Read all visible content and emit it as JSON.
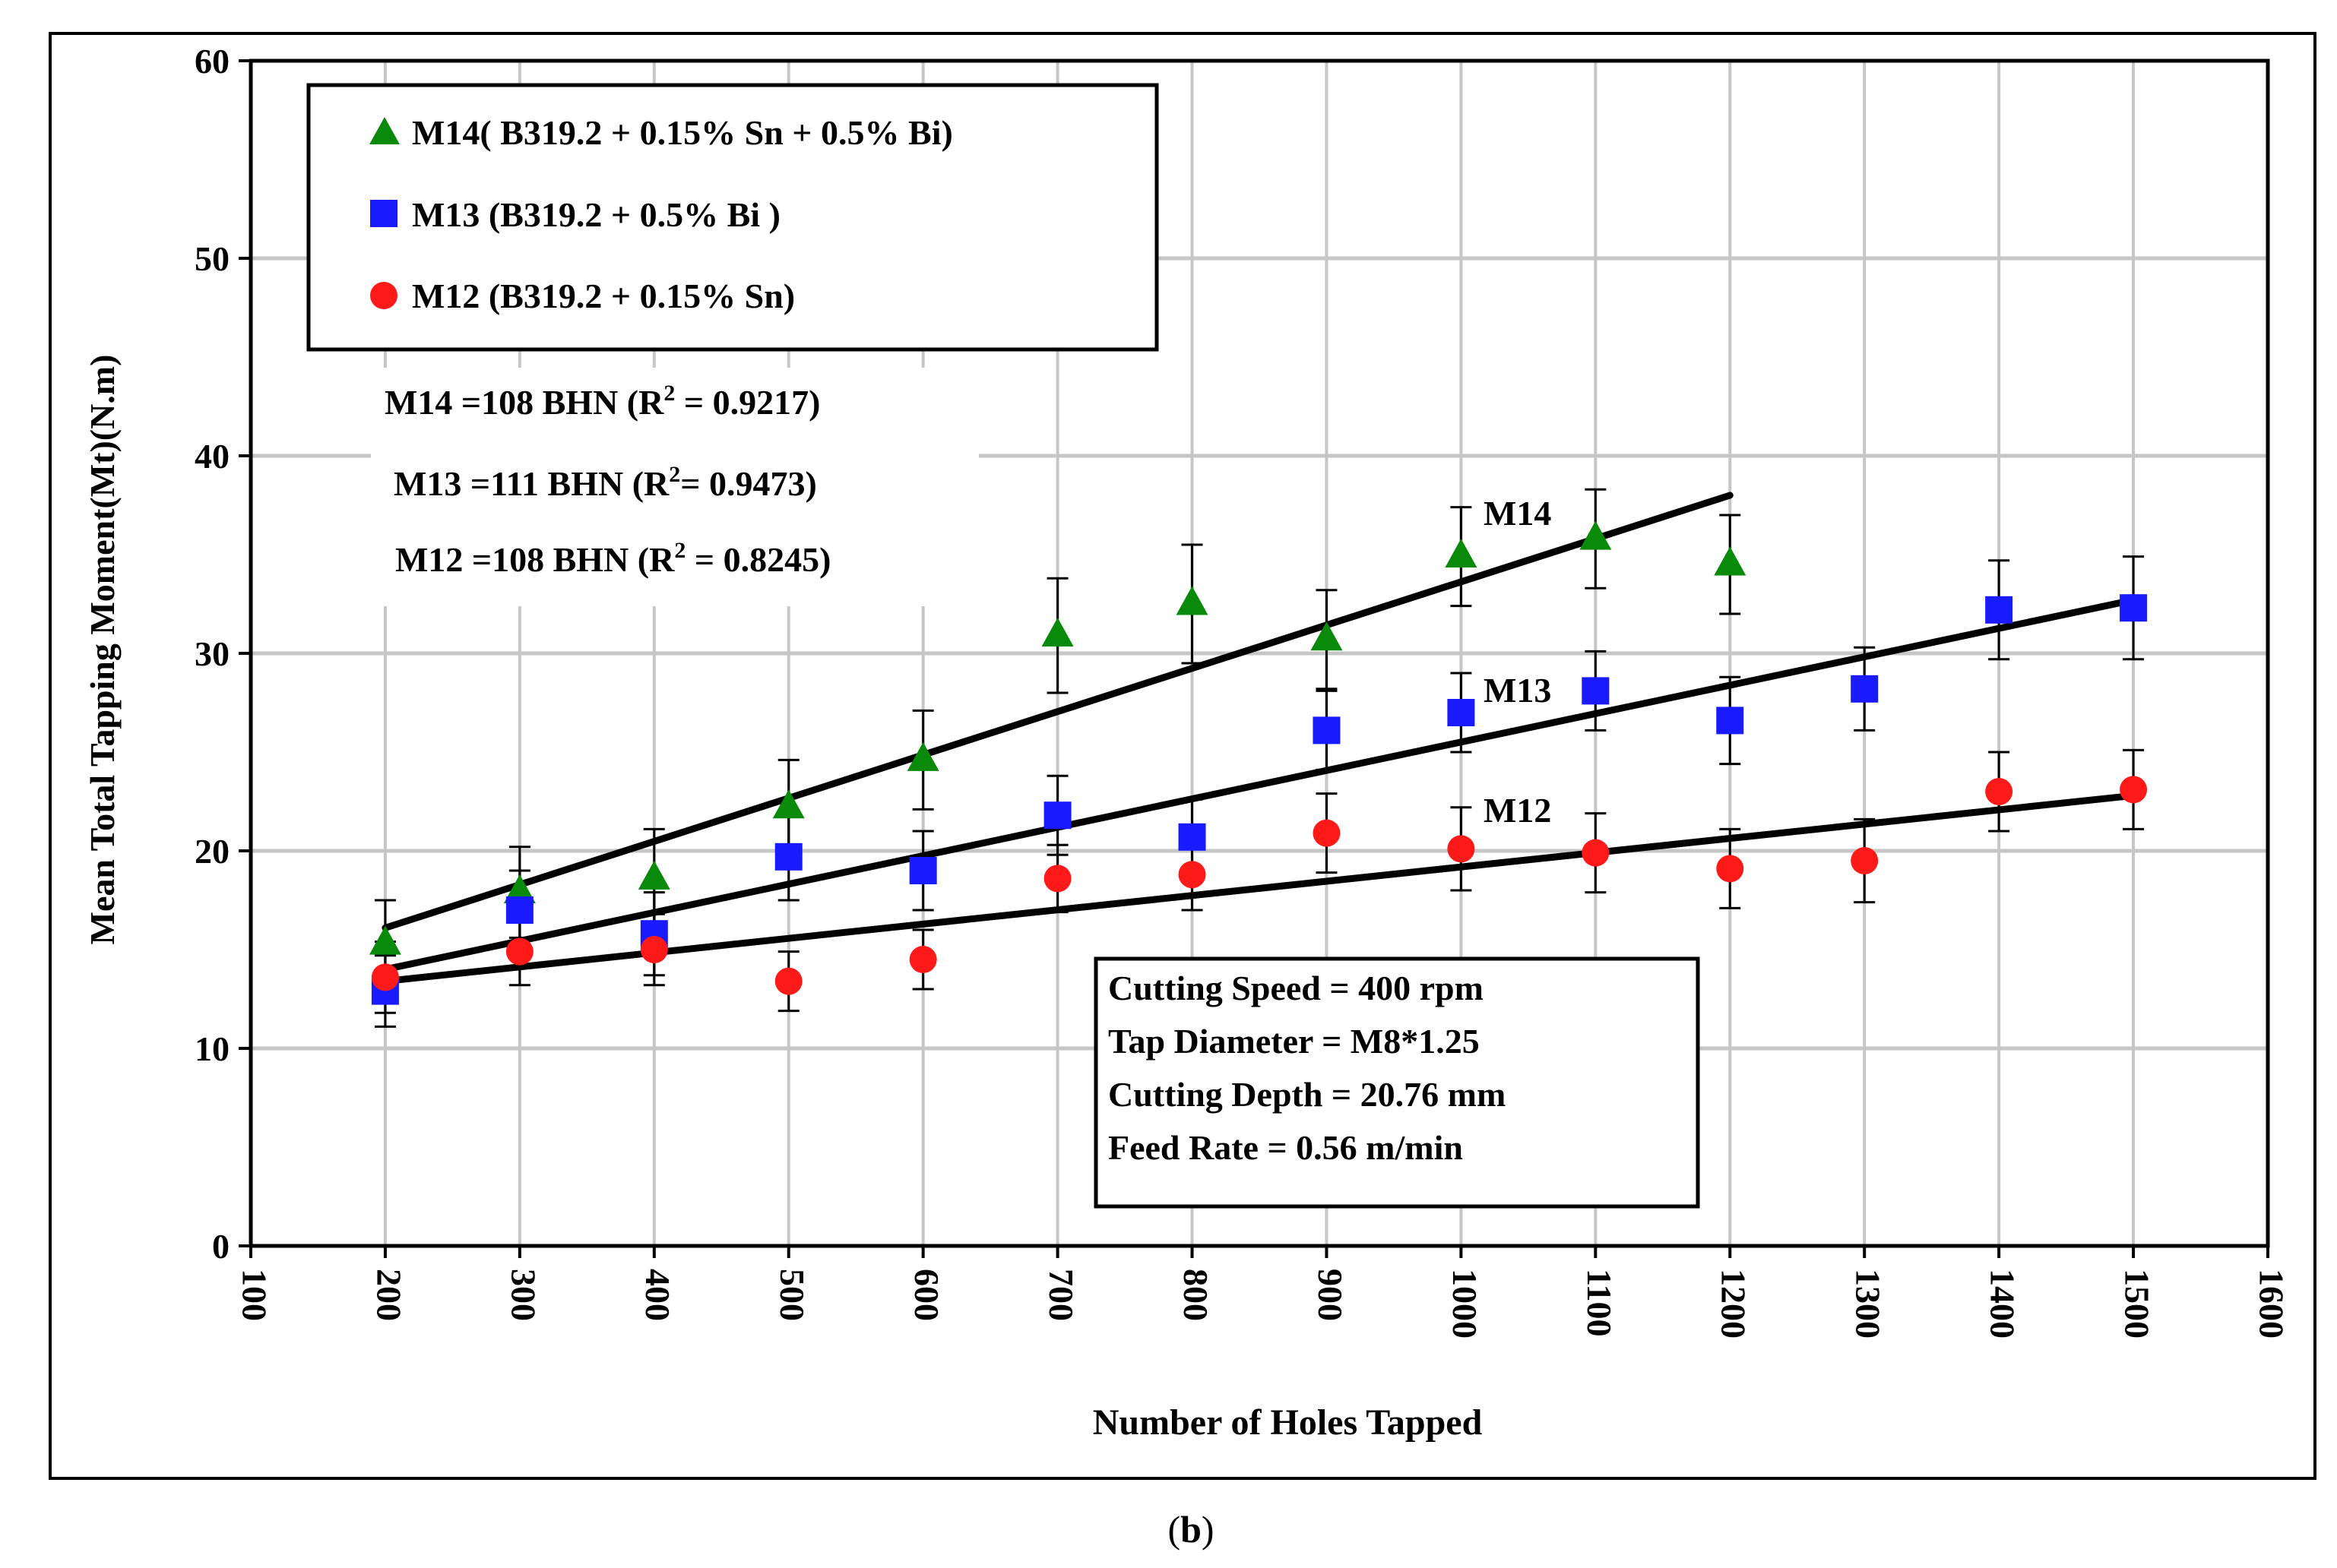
{
  "chart_data": {
    "type": "scatter",
    "title": "",
    "xlabel": "Number of Holes Tapped",
    "ylabel": "Mean Total Tapping Moment(Mt)(N.m)",
    "xlim": [
      100,
      1600
    ],
    "ylim": [
      0,
      60
    ],
    "x_ticks": [
      100,
      200,
      300,
      400,
      500,
      600,
      700,
      800,
      900,
      1000,
      1100,
      1200,
      1300,
      1400,
      1500,
      1600
    ],
    "y_ticks": [
      0,
      10,
      20,
      30,
      40,
      50,
      60
    ],
    "x_tick_labels": [
      "100",
      "200",
      "300",
      "400",
      "500",
      "600",
      "700",
      "800",
      "900",
      "1000",
      "1100",
      "1200",
      "1300",
      "1400",
      "1500",
      "1600"
    ],
    "y_tick_labels": [
      "0",
      "10",
      "20",
      "30",
      "40",
      "50",
      "60"
    ],
    "grid": true,
    "legend_position": "top-left",
    "series": [
      {
        "name": "M14( B319.2 + 0.15% Sn + 0.5% Bi)",
        "marker": "triangle",
        "color": "#0a8a0a",
        "x": [
          200,
          300,
          400,
          500,
          600,
          700,
          800,
          900,
          1000,
          1100,
          1200
        ],
        "y": [
          15.3,
          17.9,
          18.6,
          22.2,
          24.6,
          30.9,
          32.5,
          30.7,
          34.9,
          35.8,
          34.5
        ],
        "err": [
          2.2,
          2.3,
          2.5,
          2.4,
          2.5,
          2.9,
          3.0,
          2.5,
          2.5,
          2.5,
          2.5
        ],
        "trend": {
          "x": [
            200,
            1200
          ],
          "y": [
            16.1,
            38.0
          ]
        },
        "trend_label": "M14",
        "fit_text": "M14 =108 BHN (R",
        "fit_r2": " = 0.9217)",
        "fit_sup": "2"
      },
      {
        "name": "M13 (B319.2 + 0.5% Bi )",
        "marker": "square",
        "color": "#1a1aff",
        "x": [
          200,
          300,
          400,
          500,
          600,
          700,
          800,
          900,
          1000,
          1100,
          1200,
          1300,
          1400,
          1500
        ],
        "y": [
          12.9,
          17.0,
          15.8,
          19.7,
          19.0,
          21.8,
          20.7,
          26.1,
          27.0,
          28.1,
          26.6,
          28.2,
          32.2,
          32.3
        ],
        "err": [
          1.8,
          2.0,
          2.1,
          2.2,
          2.0,
          2.0,
          1.9,
          2.0,
          2.0,
          2.0,
          2.2,
          2.1,
          2.5,
          2.6
        ],
        "trend": {
          "x": [
            200,
            1500
          ],
          "y": [
            14.0,
            32.7
          ]
        },
        "trend_label": "M13",
        "fit_text": "M13 =111 BHN (R",
        "fit_r2": "= 0.9473)",
        "fit_sup": "2"
      },
      {
        "name": "M12 (B319.2 + 0.15% Sn)",
        "marker": "circle",
        "color": "#ff1a1a",
        "x": [
          200,
          300,
          400,
          500,
          600,
          700,
          800,
          900,
          1000,
          1100,
          1200,
          1300,
          1400,
          1500
        ],
        "y": [
          13.6,
          14.9,
          15.0,
          13.4,
          14.5,
          18.6,
          18.8,
          20.9,
          20.1,
          19.9,
          19.1,
          19.5,
          23.0,
          23.1
        ],
        "err": [
          1.8,
          1.7,
          1.8,
          1.5,
          1.5,
          1.7,
          1.8,
          2.0,
          2.1,
          2.0,
          2.0,
          2.1,
          2.0,
          2.0
        ],
        "trend": {
          "x": [
            200,
            1500
          ],
          "y": [
            13.4,
            22.8
          ]
        },
        "trend_label": "M12",
        "fit_text": "M12 =108 BHN (R",
        "fit_r2": " = 0.8245)",
        "fit_sup": "2"
      }
    ],
    "conditions": [
      "Cutting Speed = 400 rpm",
      "Tap Diameter = M8*1.25",
      "Cutting Depth = 20.76 mm",
      "Feed Rate = 0.56 m/min"
    ],
    "caption_open": "(",
    "caption_letter": "b",
    "caption_close": ")"
  }
}
